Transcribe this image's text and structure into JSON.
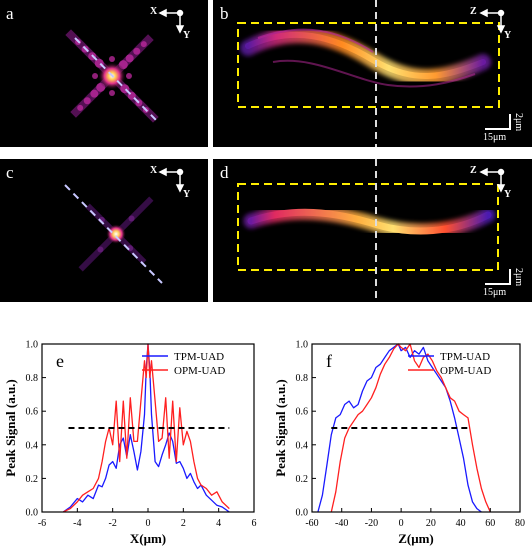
{
  "panels": {
    "a": {
      "label": "a",
      "axis_h": "X",
      "axis_v": "Y"
    },
    "b": {
      "label": "b",
      "axis_h": "Z",
      "axis_v": "Y",
      "scale_v": "2μm",
      "scale_h": "15μm"
    },
    "c": {
      "label": "c",
      "axis_h": "X",
      "axis_v": "Y"
    },
    "d": {
      "label": "d",
      "axis_h": "Z",
      "axis_v": "Y",
      "scale_v": "2μm",
      "scale_h": "15μm"
    }
  },
  "colors": {
    "tpm": "#1a1aff",
    "opm": "#ff2020",
    "threshold": "#000000",
    "box": "#ffee00"
  },
  "chart_data": [
    {
      "type": "line",
      "panel_label": "e",
      "xlabel": "X(μm)",
      "ylabel": "Peak Signal (a.u.)",
      "xlim": [
        -6,
        6
      ],
      "ylim": [
        0,
        1.0
      ],
      "xticks": [
        -6,
        -4,
        -2,
        0,
        2,
        4,
        6
      ],
      "yticks": [
        0.0,
        0.2,
        0.4,
        0.6,
        0.8,
        1.0
      ],
      "legend_position": "top-right",
      "threshold": {
        "y": 0.5,
        "x_range": [
          -4.5,
          4.6
        ]
      },
      "series": [
        {
          "name": "TPM-UAD",
          "color": "#1a1aff",
          "x": [
            -4.8,
            -4.4,
            -4.0,
            -3.7,
            -3.4,
            -3.1,
            -2.8,
            -2.6,
            -2.4,
            -2.2,
            -2.0,
            -1.8,
            -1.6,
            -1.4,
            -1.2,
            -1.0,
            -0.8,
            -0.6,
            -0.4,
            -0.2,
            -0.1,
            0,
            0.1,
            0.2,
            0.4,
            0.6,
            0.8,
            1.0,
            1.2,
            1.4,
            1.6,
            1.8,
            2.0,
            2.2,
            2.4,
            2.6,
            2.8,
            3.0,
            3.3,
            3.6,
            3.9,
            4.2,
            4.6
          ],
          "y": [
            0.0,
            0.03,
            0.08,
            0.06,
            0.1,
            0.08,
            0.16,
            0.15,
            0.2,
            0.28,
            0.3,
            0.26,
            0.4,
            0.44,
            0.33,
            0.46,
            0.36,
            0.25,
            0.36,
            0.58,
            0.85,
            1.0,
            0.85,
            0.58,
            0.3,
            0.27,
            0.34,
            0.4,
            0.47,
            0.42,
            0.29,
            0.3,
            0.26,
            0.2,
            0.23,
            0.18,
            0.14,
            0.16,
            0.1,
            0.07,
            0.04,
            0.03,
            0.0
          ]
        },
        {
          "name": "OPM-UAD",
          "color": "#ff2020",
          "x": [
            -4.8,
            -4.4,
            -4.0,
            -3.7,
            -3.4,
            -3.1,
            -2.8,
            -2.6,
            -2.4,
            -2.2,
            -2.0,
            -1.8,
            -1.6,
            -1.4,
            -1.2,
            -1.0,
            -0.8,
            -0.6,
            -0.4,
            -0.2,
            -0.1,
            0,
            0.1,
            0.2,
            0.4,
            0.6,
            0.8,
            1.0,
            1.2,
            1.4,
            1.6,
            1.8,
            2.0,
            2.2,
            2.4,
            2.6,
            2.8,
            3.0,
            3.3,
            3.6,
            3.9,
            4.2,
            4.6
          ],
          "y": [
            0.0,
            0.02,
            0.06,
            0.1,
            0.12,
            0.14,
            0.2,
            0.3,
            0.42,
            0.5,
            0.4,
            0.66,
            0.3,
            0.66,
            0.32,
            0.68,
            0.42,
            0.42,
            0.66,
            0.9,
            0.8,
            1.0,
            0.8,
            0.9,
            0.66,
            0.42,
            0.44,
            0.68,
            0.32,
            0.66,
            0.3,
            0.62,
            0.4,
            0.48,
            0.42,
            0.3,
            0.2,
            0.16,
            0.14,
            0.1,
            0.12,
            0.06,
            0.02
          ]
        }
      ]
    },
    {
      "type": "line",
      "panel_label": "f",
      "xlabel": "Z(μm)",
      "ylabel": "Peak Signal (a.u.)",
      "xlim": [
        -60,
        80
      ],
      "ylim": [
        0,
        1.0
      ],
      "xticks": [
        -60,
        -40,
        -20,
        0,
        20,
        40,
        60,
        80
      ],
      "yticks": [
        0.0,
        0.2,
        0.4,
        0.6,
        0.8,
        1.0
      ],
      "legend_position": "top-right",
      "threshold": {
        "y": 0.5,
        "x_range": [
          -47,
          47
        ]
      },
      "series": [
        {
          "name": "TPM-UAD",
          "color": "#1a1aff",
          "x": [
            -56,
            -53,
            -50,
            -47,
            -44,
            -41,
            -38,
            -35,
            -32,
            -29,
            -26,
            -23,
            -20,
            -17,
            -14,
            -11,
            -8,
            -5,
            -2,
            0,
            3,
            6,
            9,
            12,
            15,
            18,
            21,
            24,
            27,
            30,
            33,
            36,
            39,
            42,
            45,
            48,
            51,
            54
          ],
          "y": [
            0.0,
            0.1,
            0.28,
            0.46,
            0.56,
            0.58,
            0.64,
            0.66,
            0.62,
            0.64,
            0.72,
            0.78,
            0.8,
            0.86,
            0.88,
            0.92,
            0.96,
            0.98,
            1.0,
            0.96,
            0.98,
            0.92,
            0.96,
            0.94,
            0.98,
            0.9,
            0.86,
            0.82,
            0.78,
            0.74,
            0.66,
            0.56,
            0.44,
            0.32,
            0.16,
            0.06,
            0.02,
            0.0
          ]
        },
        {
          "name": "OPM-UAD",
          "color": "#ff2020",
          "x": [
            -47,
            -44,
            -41,
            -38,
            -35,
            -32,
            -29,
            -26,
            -23,
            -20,
            -17,
            -14,
            -11,
            -8,
            -5,
            -2,
            0,
            3,
            6,
            9,
            12,
            15,
            18,
            21,
            24,
            27,
            30,
            33,
            36,
            39,
            42,
            45,
            48,
            51,
            54,
            57,
            60
          ],
          "y": [
            0.0,
            0.12,
            0.3,
            0.44,
            0.5,
            0.54,
            0.58,
            0.6,
            0.64,
            0.68,
            0.74,
            0.82,
            0.88,
            0.92,
            0.97,
            1.0,
            0.98,
            0.96,
            1.0,
            0.9,
            0.86,
            0.92,
            0.94,
            0.9,
            0.84,
            0.8,
            0.74,
            0.68,
            0.66,
            0.6,
            0.58,
            0.56,
            0.4,
            0.26,
            0.14,
            0.06,
            0.0
          ]
        }
      ]
    }
  ]
}
